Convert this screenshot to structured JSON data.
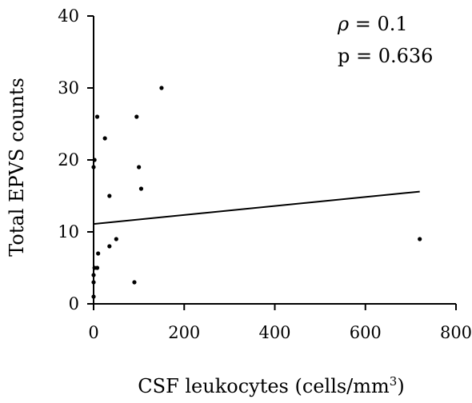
{
  "chart_data": {
    "type": "scatter",
    "xlabel": "CSF leukocytes (cells/mm",
    "xlabel_sup": "3",
    "xlabel_end": ")",
    "ylabel": "Total EPVS counts",
    "xlim": [
      0,
      800
    ],
    "ylim": [
      0,
      40
    ],
    "x_ticks": [
      0,
      200,
      400,
      600,
      800
    ],
    "y_ticks": [
      0,
      10,
      20,
      30,
      40
    ],
    "grid": false,
    "points": [
      {
        "x": 0,
        "y": 1
      },
      {
        "x": 0,
        "y": 3
      },
      {
        "x": 0,
        "y": 4
      },
      {
        "x": 2,
        "y": 5
      },
      {
        "x": 8,
        "y": 5
      },
      {
        "x": 10,
        "y": 7
      },
      {
        "x": 0,
        "y": 19
      },
      {
        "x": 2,
        "y": 20
      },
      {
        "x": 8,
        "y": 26
      },
      {
        "x": 25,
        "y": 23
      },
      {
        "x": 35,
        "y": 15
      },
      {
        "x": 35,
        "y": 8
      },
      {
        "x": 50,
        "y": 9
      },
      {
        "x": 90,
        "y": 3
      },
      {
        "x": 95,
        "y": 26
      },
      {
        "x": 100,
        "y": 19
      },
      {
        "x": 105,
        "y": 16
      },
      {
        "x": 150,
        "y": 30
      },
      {
        "x": 720,
        "y": 9
      }
    ],
    "trendline": {
      "x": [
        0,
        720
      ],
      "y": [
        11.1,
        15.6
      ]
    },
    "annotation": {
      "rho_symbol": "ρ",
      "rho_value": " = 0.1",
      "p_text": "p = 0.636"
    }
  }
}
